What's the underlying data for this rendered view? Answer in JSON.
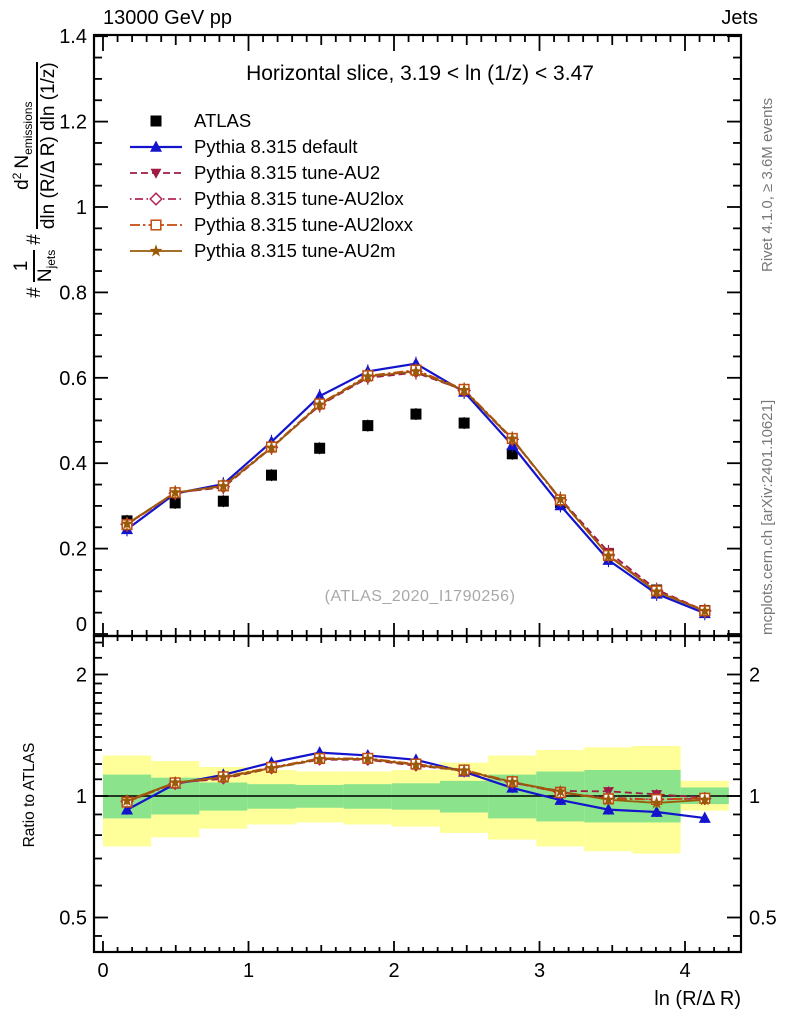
{
  "header": {
    "left": "13000 GeV pp",
    "right": "Jets"
  },
  "title": "Horizontal slice, 3.19 < ln (1/z) < 3.47",
  "watermark": "(ATLAS_2020_I1790256)",
  "side_notes": {
    "top": "Rivet 4.1.0, ≥ 3.6M events",
    "bottom": "mcplots.cern.ch [arXiv:2401.10621]"
  },
  "xlabel": "ln (R/Δ R)",
  "ratio_ylabel": "Ratio to ATLAS",
  "ylabel_parts": {
    "hash1": "#",
    "frac1": {
      "num": "1",
      "den_main": "N",
      "den_sub": "jets"
    },
    "hash2": "#",
    "frac2": {
      "num_d": "d",
      "num_sup": "2",
      "num_N": "N",
      "num_sub": "emissions",
      "den": "dln (R/Δ R) dln (1/z)"
    }
  },
  "colors": {
    "frame": "#000000",
    "band_yellow": "#ffff99",
    "band_green": "#8be48b",
    "gray_text": "#787878",
    "watermark": "#a8a8a8"
  },
  "chart_data": {
    "type": "line",
    "title": "Horizontal slice, 3.19 < ln (1/z) < 3.47",
    "xlabel": "ln (R/Δ R)",
    "ylabel": "#1/N_jets # d^2 N_emissions / dln (R/Δ R) dln (1/z)",
    "legend_position": "top-left",
    "grid": false,
    "x": [
      0.165,
      0.496,
      0.827,
      1.158,
      1.489,
      1.82,
      2.151,
      2.482,
      2.813,
      3.144,
      3.474,
      3.805,
      4.136
    ],
    "series": [
      {
        "name": "ATLAS",
        "color": "#000000",
        "marker": "square-filled",
        "line": "none",
        "values": [
          0.265,
          0.307,
          0.311,
          0.372,
          0.435,
          0.488,
          0.515,
          0.494,
          0.422,
          0.308,
          0.187,
          0.103,
          0.055
        ]
      },
      {
        "name": "Pythia 8.315 default",
        "color": "#1414cc",
        "marker": "triangle-up-filled",
        "line": "solid",
        "values": [
          0.245,
          0.329,
          0.351,
          0.45,
          0.557,
          0.615,
          0.633,
          0.567,
          0.442,
          0.301,
          0.173,
          0.094,
          0.0485
        ]
      },
      {
        "name": "Pythia 8.315 tune-AU2",
        "color": "#9f1b45",
        "marker": "triangle-down-filled",
        "line": "dashed",
        "values": [
          0.258,
          0.3315,
          0.343,
          0.436,
          0.535,
          0.6,
          0.612,
          0.571,
          0.455,
          0.317,
          0.192,
          0.104,
          0.0545
        ]
      },
      {
        "name": "Pythia 8.315 tune-AU2lox",
        "color": "#b3265a",
        "marker": "diamond-open",
        "line": "dashdot",
        "values": [
          0.257,
          0.33,
          0.345,
          0.437,
          0.537,
          0.602,
          0.615,
          0.57,
          0.456,
          0.314,
          0.185,
          0.101,
          0.0542
        ]
      },
      {
        "name": "Pythia 8.315 tune-AU2loxx",
        "color": "#c44a0e",
        "marker": "square-open",
        "line": "dashdotdot",
        "values": [
          0.256,
          0.331,
          0.347,
          0.438,
          0.539,
          0.605,
          0.618,
          0.573,
          0.458,
          0.314,
          0.184,
          0.101,
          0.0543
        ]
      },
      {
        "name": "Pythia 8.315 tune-AU2m",
        "color": "#9a5a08",
        "marker": "star-filled",
        "line": "solid",
        "values": [
          0.258,
          0.3315,
          0.346,
          0.436,
          0.537,
          0.603,
          0.615,
          0.571,
          0.457,
          0.316,
          0.183,
          0.099,
          0.0538
        ]
      }
    ],
    "axes": {
      "x": {
        "range": [
          -0.062,
          4.385
        ],
        "major": [
          0,
          1,
          2,
          3,
          4
        ],
        "major_labels": [
          "0",
          "1",
          "2",
          "3",
          "4"
        ]
      },
      "y_main": {
        "range": [
          0,
          1.402
        ],
        "major": [
          0,
          0.2,
          0.4,
          0.6,
          0.8,
          1.0,
          1.2,
          1.4
        ],
        "major_labels": [
          "0",
          "0.2",
          "0.4",
          "0.6",
          "0.8",
          "1",
          "1.2",
          "1.4"
        ]
      },
      "y_ratio": {
        "scale": "log",
        "range": [
          0.408,
          2.49
        ],
        "major": [
          0.5,
          1,
          2
        ],
        "major_labels": [
          "0.5",
          "1",
          "2"
        ],
        "minor": [
          0.45,
          0.6,
          0.7,
          0.8,
          0.9,
          1.1,
          1.2,
          1.3,
          1.4,
          1.5,
          1.6,
          1.7,
          1.8,
          1.9,
          2.2,
          2.4
        ]
      }
    },
    "ratio_reference": 1,
    "bands": {
      "edges": [
        0,
        0.331,
        0.662,
        0.992,
        1.323,
        1.654,
        1.985,
        2.316,
        2.647,
        2.978,
        3.308,
        3.639,
        3.97,
        4.301
      ],
      "yellow": [
        [
          0.75,
          1.26
        ],
        [
          0.79,
          1.22
        ],
        [
          0.83,
          1.18
        ],
        [
          0.85,
          1.16
        ],
        [
          0.86,
          1.15
        ],
        [
          0.85,
          1.15
        ],
        [
          0.84,
          1.16
        ],
        [
          0.81,
          1.21
        ],
        [
          0.78,
          1.26
        ],
        [
          0.75,
          1.3
        ],
        [
          0.73,
          1.32
        ],
        [
          0.72,
          1.33
        ],
        [
          0.92,
          1.09
        ]
      ],
      "green": [
        [
          0.88,
          1.13
        ],
        [
          0.9,
          1.11
        ],
        [
          0.92,
          1.08
        ],
        [
          0.93,
          1.07
        ],
        [
          0.935,
          1.065
        ],
        [
          0.93,
          1.07
        ],
        [
          0.925,
          1.075
        ],
        [
          0.91,
          1.09
        ],
        [
          0.88,
          1.13
        ],
        [
          0.865,
          1.15
        ],
        [
          0.86,
          1.16
        ],
        [
          0.86,
          1.16
        ],
        [
          0.955,
          1.05
        ]
      ]
    }
  }
}
